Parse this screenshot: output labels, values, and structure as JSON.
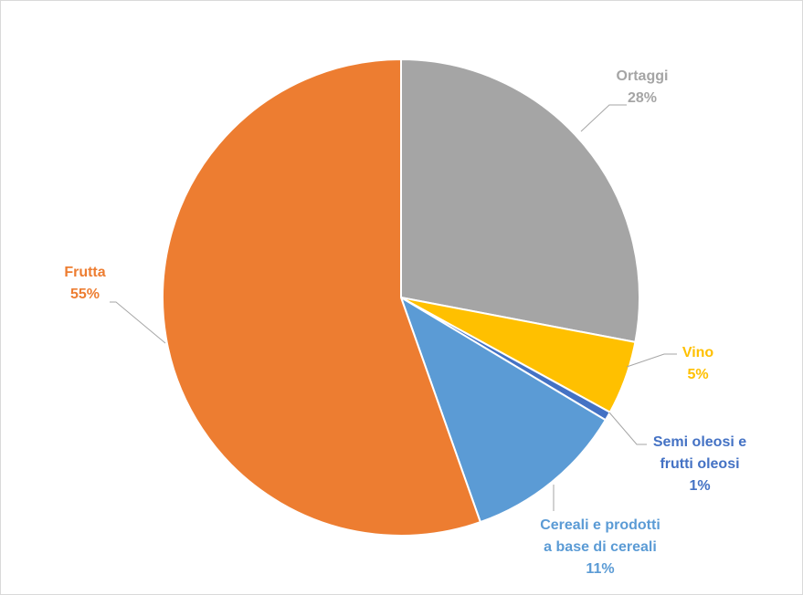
{
  "chart_data": {
    "type": "pie",
    "title": "",
    "start_angle_deg": 90,
    "direction": "clockwise",
    "legend": "none",
    "slices": [
      {
        "label_lines": [
          "Ortaggi"
        ],
        "pct_label": "28%",
        "value": 28,
        "color": "#A5A5A5"
      },
      {
        "label_lines": [
          "Vino"
        ],
        "pct_label": "5%",
        "value": 5,
        "color": "#FFC000"
      },
      {
        "label_lines": [
          "Semi oleosi e",
          "frutti oleosi"
        ],
        "pct_label": "1%",
        "value": 0.6,
        "color": "#4472C4"
      },
      {
        "label_lines": [
          "Cereali e prodotti",
          "a base di cereali"
        ],
        "pct_label": "11%",
        "value": 11,
        "color": "#5B9BD5"
      },
      {
        "label_lines": [
          "Frutta"
        ],
        "pct_label": "55%",
        "value": 55.4,
        "color": "#ED7D31"
      }
    ]
  }
}
